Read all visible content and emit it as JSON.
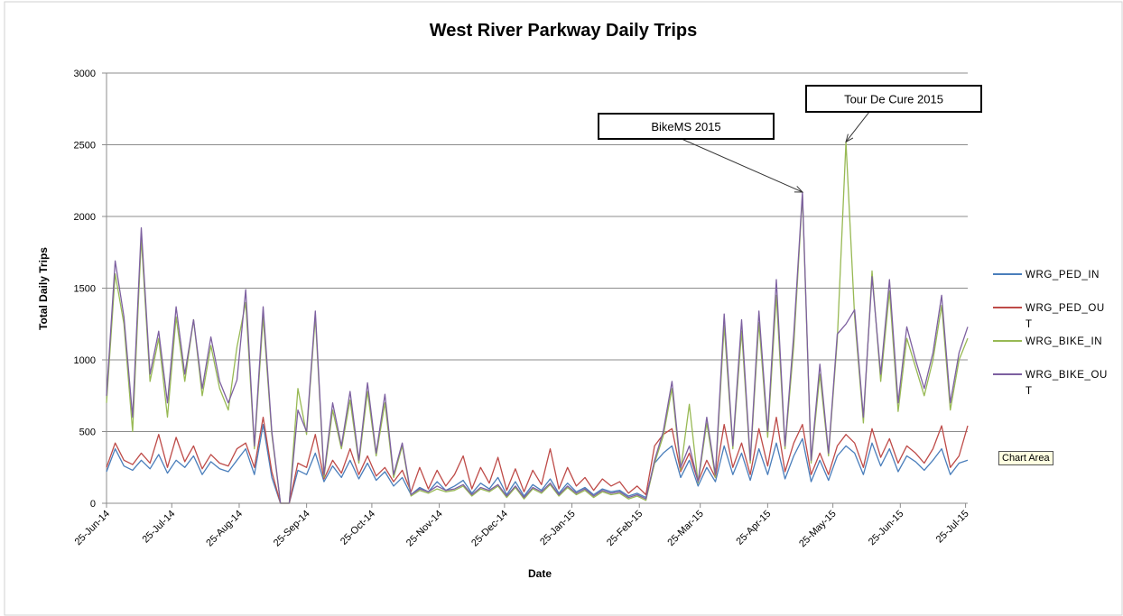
{
  "chart_data": {
    "type": "line",
    "title": "West River Parkway Daily Trips",
    "xlabel": "Date",
    "ylabel": "Total Daily Trips",
    "tooltip": "Chart Area",
    "grid": true,
    "legend": "right",
    "xlim": [
      "2014-06-25",
      "2015-07-26"
    ],
    "ylim": [
      0,
      3000
    ],
    "yticks": [
      0,
      500,
      1000,
      1500,
      2000,
      2500,
      3000
    ],
    "xticks": [
      {
        "value": "2014-06-25",
        "label": "25-Jun-14"
      },
      {
        "value": "2014-07-25",
        "label": "25-Jul-14"
      },
      {
        "value": "2014-08-25",
        "label": "25-Aug-14"
      },
      {
        "value": "2014-09-25",
        "label": "25-Sep-14"
      },
      {
        "value": "2014-10-25",
        "label": "25-Oct-14"
      },
      {
        "value": "2014-11-25",
        "label": "25-Nov-14"
      },
      {
        "value": "2014-12-25",
        "label": "25-Dec-14"
      },
      {
        "value": "2015-01-25",
        "label": "25-Jan-15"
      },
      {
        "value": "2015-02-25",
        "label": "25-Feb-15"
      },
      {
        "value": "2015-03-25",
        "label": "25-Mar-15"
      },
      {
        "value": "2015-04-25",
        "label": "25-Apr-15"
      },
      {
        "value": "2015-05-25",
        "label": "25-May-15"
      },
      {
        "value": "2015-06-25",
        "label": "25-Jun-15"
      },
      {
        "value": "2015-07-25",
        "label": "25-Jul-15"
      }
    ],
    "x": [
      "2014-06-25",
      "2014-06-29",
      "2014-07-03",
      "2014-07-07",
      "2014-07-11",
      "2014-07-15",
      "2014-07-19",
      "2014-07-23",
      "2014-07-27",
      "2014-07-31",
      "2014-08-04",
      "2014-08-08",
      "2014-08-12",
      "2014-08-16",
      "2014-08-20",
      "2014-08-24",
      "2014-08-28",
      "2014-09-01",
      "2014-09-05",
      "2014-09-09",
      "2014-09-13",
      "2014-09-17",
      "2014-09-21",
      "2014-09-25",
      "2014-09-29",
      "2014-10-03",
      "2014-10-07",
      "2014-10-11",
      "2014-10-15",
      "2014-10-19",
      "2014-10-23",
      "2014-10-27",
      "2014-10-31",
      "2014-11-04",
      "2014-11-08",
      "2014-11-12",
      "2014-11-16",
      "2014-11-20",
      "2014-11-24",
      "2014-11-28",
      "2014-12-02",
      "2014-12-06",
      "2014-12-10",
      "2014-12-14",
      "2014-12-18",
      "2014-12-22",
      "2014-12-26",
      "2014-12-30",
      "2015-01-03",
      "2015-01-07",
      "2015-01-11",
      "2015-01-15",
      "2015-01-19",
      "2015-01-23",
      "2015-01-27",
      "2015-01-31",
      "2015-02-04",
      "2015-02-08",
      "2015-02-12",
      "2015-02-16",
      "2015-02-20",
      "2015-02-24",
      "2015-02-28",
      "2015-03-04",
      "2015-03-08",
      "2015-03-12",
      "2015-03-16",
      "2015-03-20",
      "2015-03-24",
      "2015-03-28",
      "2015-04-01",
      "2015-04-05",
      "2015-04-09",
      "2015-04-13",
      "2015-04-17",
      "2015-04-21",
      "2015-04-25",
      "2015-04-29",
      "2015-05-03",
      "2015-05-07",
      "2015-05-11",
      "2015-05-15",
      "2015-05-19",
      "2015-05-23",
      "2015-05-27",
      "2015-05-31",
      "2015-06-04",
      "2015-06-08",
      "2015-06-12",
      "2015-06-16",
      "2015-06-20",
      "2015-06-24",
      "2015-06-28",
      "2015-07-02",
      "2015-07-06",
      "2015-07-10",
      "2015-07-14",
      "2015-07-18",
      "2015-07-22",
      "2015-07-26"
    ],
    "series": [
      {
        "name": "WRG_PED_IN",
        "color": "#4a7ebb",
        "values": [
          220,
          380,
          260,
          230,
          300,
          240,
          340,
          210,
          300,
          250,
          330,
          200,
          290,
          240,
          220,
          300,
          380,
          200,
          550,
          180,
          0,
          0,
          230,
          200,
          350,
          150,
          260,
          180,
          300,
          170,
          280,
          160,
          220,
          120,
          180,
          60,
          110,
          80,
          150,
          90,
          120,
          160,
          70,
          140,
          100,
          180,
          60,
          150,
          50,
          130,
          90,
          170,
          70,
          140,
          80,
          110,
          60,
          100,
          80,
          90,
          50,
          70,
          40,
          280,
          350,
          400,
          180,
          300,
          120,
          250,
          150,
          400,
          200,
          350,
          160,
          380,
          200,
          420,
          170,
          330,
          450,
          150,
          300,
          160,
          330,
          400,
          350,
          200,
          420,
          260,
          380,
          220,
          330,
          290,
          230,
          300,
          380,
          200,
          280,
          300
        ]
      },
      {
        "name": "WRG_PED_OUT",
        "color": "#be4b48",
        "values": [
          250,
          420,
          300,
          270,
          350,
          280,
          480,
          250,
          460,
          290,
          400,
          240,
          340,
          280,
          260,
          380,
          420,
          250,
          600,
          220,
          0,
          0,
          280,
          250,
          480,
          170,
          300,
          210,
          380,
          200,
          330,
          190,
          250,
          150,
          230,
          80,
          250,
          100,
          230,
          120,
          200,
          330,
          100,
          250,
          140,
          320,
          90,
          240,
          80,
          230,
          130,
          380,
          100,
          250,
          120,
          180,
          90,
          170,
          120,
          150,
          70,
          120,
          60,
          400,
          480,
          520,
          220,
          350,
          150,
          300,
          180,
          550,
          250,
          420,
          200,
          520,
          260,
          600,
          220,
          420,
          550,
          200,
          350,
          200,
          400,
          480,
          420,
          250,
          520,
          320,
          450,
          280,
          400,
          350,
          280,
          380,
          540,
          250,
          330,
          540
        ]
      },
      {
        "name": "WRG_BIKE_IN",
        "color": "#98b954",
        "values": [
          700,
          1600,
          1250,
          500,
          1850,
          850,
          1150,
          600,
          1300,
          850,
          1280,
          750,
          1100,
          800,
          650,
          1090,
          1400,
          380,
          1300,
          480,
          0,
          0,
          800,
          480,
          1300,
          180,
          650,
          380,
          720,
          280,
          780,
          330,
          700,
          180,
          400,
          50,
          90,
          70,
          100,
          80,
          90,
          120,
          50,
          100,
          80,
          120,
          40,
          110,
          30,
          100,
          70,
          130,
          50,
          110,
          60,
          90,
          40,
          80,
          60,
          70,
          30,
          50,
          20,
          280,
          470,
          800,
          230,
          690,
          140,
          560,
          180,
          1240,
          380,
          1200,
          280,
          1260,
          460,
          1450,
          380,
          1100,
          2150,
          280,
          900,
          330,
          1140,
          2520,
          1300,
          560,
          1620,
          850,
          1480,
          640,
          1150,
          950,
          750,
          1000,
          1380,
          650,
          1000,
          1150
        ]
      },
      {
        "name": "WRG_BIKE_OUT",
        "color": "#7d60a0",
        "values": [
          750,
          1690,
          1300,
          600,
          1920,
          900,
          1200,
          700,
          1370,
          900,
          1280,
          800,
          1160,
          850,
          700,
          860,
          1490,
          400,
          1370,
          500,
          0,
          0,
          650,
          500,
          1340,
          200,
          700,
          400,
          780,
          300,
          840,
          350,
          760,
          200,
          420,
          60,
          100,
          80,
          120,
          90,
          100,
          130,
          60,
          110,
          90,
          130,
          50,
          120,
          40,
          110,
          80,
          140,
          60,
          120,
          70,
          100,
          50,
          90,
          70,
          80,
          40,
          60,
          30,
          300,
          500,
          850,
          250,
          400,
          150,
          600,
          200,
          1320,
          400,
          1280,
          300,
          1340,
          500,
          1560,
          400,
          1180,
          2170,
          300,
          970,
          350,
          1180,
          1250,
          1350,
          600,
          1580,
          900,
          1560,
          700,
          1230,
          1000,
          800,
          1050,
          1450,
          700,
          1050,
          1230
        ]
      }
    ],
    "annotations": [
      {
        "text": "BikeMS 2015",
        "x": "2015-05-11",
        "y": 2170
      },
      {
        "text": "Tour De Cure 2015",
        "x": "2015-05-31",
        "y": 2520
      }
    ]
  }
}
